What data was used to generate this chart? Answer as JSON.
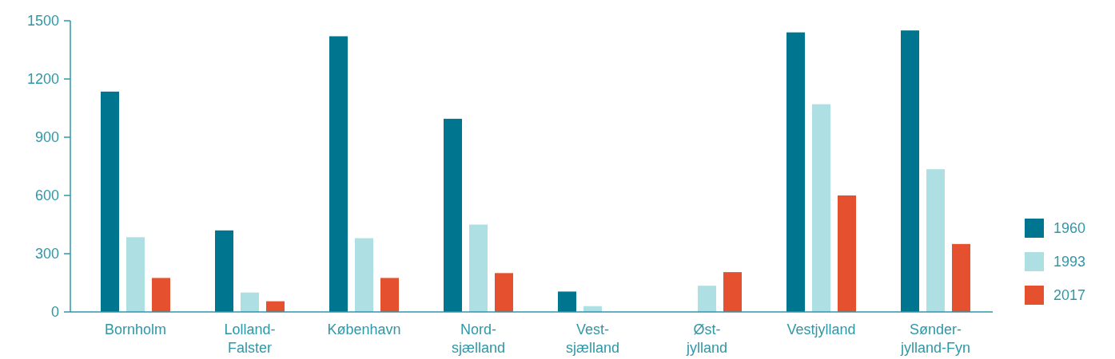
{
  "chart_data": {
    "type": "bar",
    "categories": [
      "Bornholm",
      "Lolland-\nFalster",
      "København",
      "Nord-\nsjælland",
      "Vest-\nsjælland",
      "Øst-\njylland",
      "Vestjylland",
      "Sønder-\njylland-Fyn"
    ],
    "series": [
      {
        "name": "1960",
        "color": "#00758f",
        "values": [
          1135,
          420,
          1420,
          995,
          105,
          null,
          1440,
          1450
        ]
      },
      {
        "name": "1993",
        "color": "#aee0e3",
        "values": [
          385,
          100,
          380,
          450,
          30,
          135,
          1070,
          735
        ]
      },
      {
        "name": "2017",
        "color": "#e5502e",
        "values": [
          175,
          55,
          175,
          200,
          null,
          205,
          600,
          350
        ]
      }
    ],
    "ylim": [
      0,
      1500
    ],
    "yticks": [
      0,
      300,
      600,
      900,
      1200,
      1500
    ],
    "grid": false,
    "legend": "right"
  }
}
